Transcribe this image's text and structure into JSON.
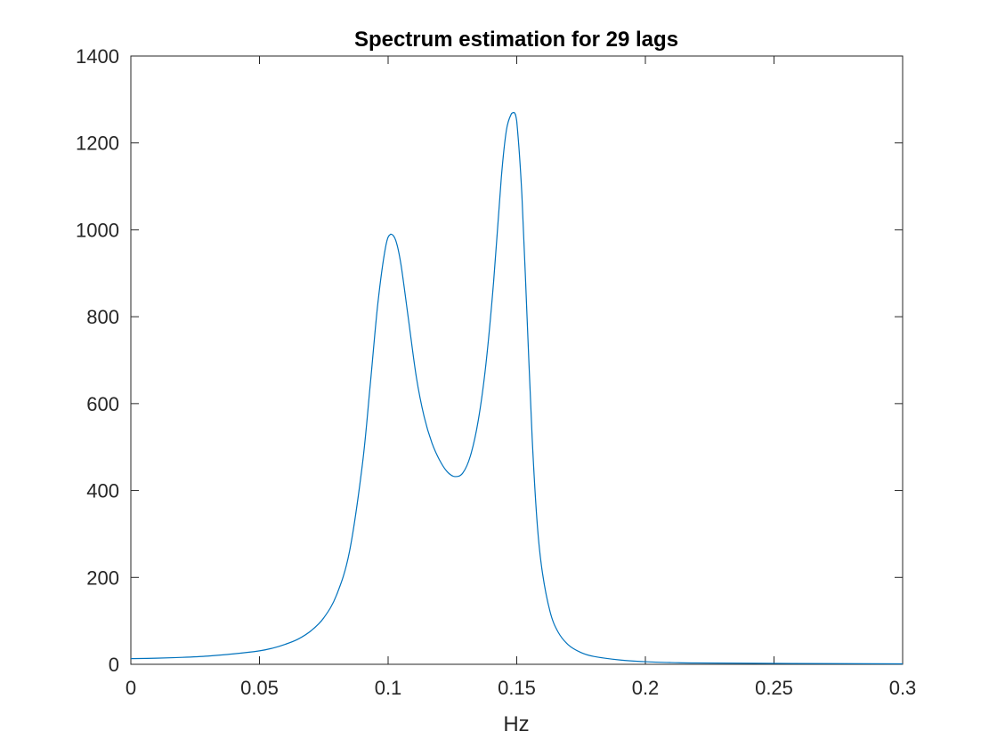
{
  "chart_data": {
    "type": "line",
    "title": "Spectrum estimation for 29 lags",
    "xlabel": "Hz",
    "ylabel": "",
    "xlim": [
      0,
      0.3
    ],
    "ylim": [
      0,
      1400
    ],
    "xticks": [
      0,
      0.05,
      0.1,
      0.15,
      0.2,
      0.25,
      0.3
    ],
    "xtick_labels": [
      "0",
      "0.05",
      "0.1",
      "0.15",
      "0.2",
      "0.25",
      "0.3"
    ],
    "yticks": [
      0,
      200,
      400,
      600,
      800,
      1000,
      1200,
      1400
    ],
    "ytick_labels": [
      "0",
      "200",
      "400",
      "600",
      "800",
      "1000",
      "1200",
      "1400"
    ],
    "grid": false,
    "legend": "none",
    "series": [
      {
        "color": "#0072BD",
        "x": [
          0,
          0.01,
          0.02,
          0.03,
          0.04,
          0.05,
          0.055,
          0.06,
          0.065,
          0.07,
          0.075,
          0.08,
          0.085,
          0.09,
          0.093,
          0.096,
          0.099,
          0.101,
          0.103,
          0.105,
          0.108,
          0.111,
          0.114,
          0.117,
          0.12,
          0.123,
          0.126,
          0.129,
          0.132,
          0.135,
          0.138,
          0.141,
          0.144,
          0.146,
          0.148,
          0.149,
          0.15,
          0.152,
          0.154,
          0.156,
          0.158,
          0.16,
          0.163,
          0.166,
          0.17,
          0.175,
          0.18,
          0.19,
          0.2,
          0.21,
          0.22,
          0.25,
          0.3
        ],
        "y": [
          13,
          14,
          16,
          19,
          24,
          31,
          37,
          46,
          58,
          77,
          107,
          160,
          260,
          460,
          640,
          830,
          960,
          990,
          975,
          920,
          790,
          660,
          570,
          510,
          470,
          443,
          432,
          440,
          480,
          560,
          690,
          880,
          1120,
          1230,
          1268,
          1270,
          1250,
          1080,
          800,
          520,
          320,
          210,
          120,
          75,
          45,
          27,
          18,
          10,
          6,
          4,
          3,
          2,
          1
        ]
      }
    ]
  }
}
